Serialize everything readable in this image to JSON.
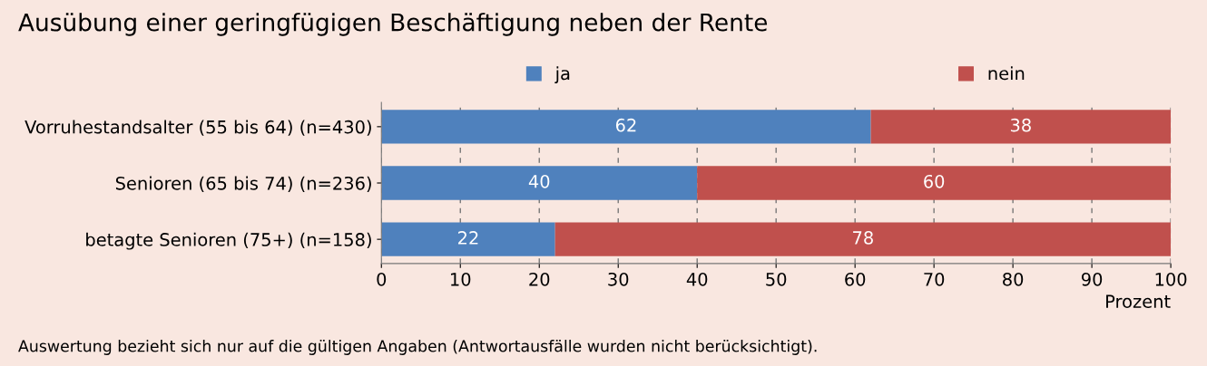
{
  "chart_data": {
    "type": "bar",
    "orientation": "horizontal",
    "stacked": true,
    "title": "Ausübung einer geringfügigen Beschäftigung neben der Rente",
    "categories": [
      "Vorruhestandsalter (55 bis 64) (n=430)",
      "Senioren (65 bis 74) (n=236)",
      "betagte Senioren (75+) (n=158)"
    ],
    "series": [
      {
        "name": "ja",
        "color": "#4f81bd",
        "values": [
          62,
          40,
          22
        ]
      },
      {
        "name": "nein",
        "color": "#c0504d",
        "values": [
          38,
          60,
          78
        ]
      }
    ],
    "xlim": [
      0,
      100
    ],
    "xticks": [
      0,
      10,
      20,
      30,
      40,
      50,
      60,
      70,
      80,
      90,
      100
    ],
    "xlabel": "Prozent",
    "grid": "x",
    "legend": "top",
    "data_labels": true,
    "annotations": [
      "Auswertung bezieht sich nur auf die gültigen Angaben (Antwortausfälle wurden nicht berücksichtigt)."
    ]
  }
}
